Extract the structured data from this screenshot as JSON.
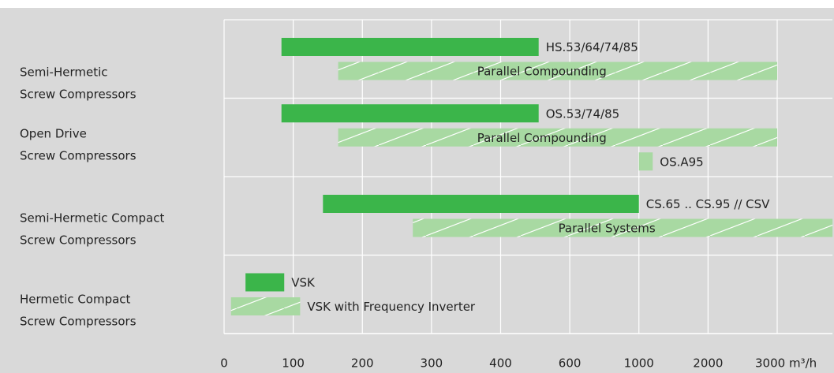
{
  "chart_data": {
    "type": "range-bar",
    "xlim": [
      0,
      3800
    ],
    "xticks": [
      0,
      100,
      200,
      300,
      400,
      600,
      1000,
      2000,
      {
        "value": 3000,
        "label": "3000 m³/h"
      }
    ],
    "grid": true,
    "groups": [
      {
        "label": [
          "Semi-Hermetic",
          "Screw Compressors"
        ],
        "bars": [
          {
            "label": "HS.53/64/74/85",
            "start": 83,
            "end": 510,
            "color": "#3bb54a",
            "hatched": false
          },
          {
            "label": "Parallel Compounding",
            "start": 165,
            "end": 3000,
            "color": "#a8d9a2",
            "hatched": true
          }
        ]
      },
      {
        "label": [
          "Open Drive",
          "Screw Compressors"
        ],
        "bars": [
          {
            "label": "OS.53/74/85",
            "start": 83,
            "end": 510,
            "color": "#3bb54a",
            "hatched": false
          },
          {
            "label": "Parallel Compounding",
            "start": 165,
            "end": 3000,
            "color": "#a8d9a2",
            "hatched": true
          },
          {
            "label": "OS.A95",
            "start": 1000,
            "end": 1200,
            "color": "#a8d9a2",
            "hatched": false
          }
        ]
      },
      {
        "label": [
          "Semi-Hermetic Compact",
          "Screw Compressors"
        ],
        "bars": [
          {
            "label": "CS.65 .. CS.95 // CSV",
            "start": 143,
            "end": 1000,
            "color": "#3bb54a",
            "hatched": false
          },
          {
            "label": "Parallel Systems",
            "start": 273,
            "end": 3800,
            "color": "#a8d9a2",
            "hatched": true
          }
        ]
      },
      {
        "label": [
          "Hermetic Compact",
          "Screw Compressors"
        ],
        "bars": [
          {
            "label": "VSK",
            "start": 31,
            "end": 87,
            "color": "#3bb54a",
            "hatched": false
          },
          {
            "label": "VSK with Frequency Inverter",
            "start": 10,
            "end": 110,
            "color": "#a8d9a2",
            "hatched": true
          }
        ]
      }
    ]
  }
}
